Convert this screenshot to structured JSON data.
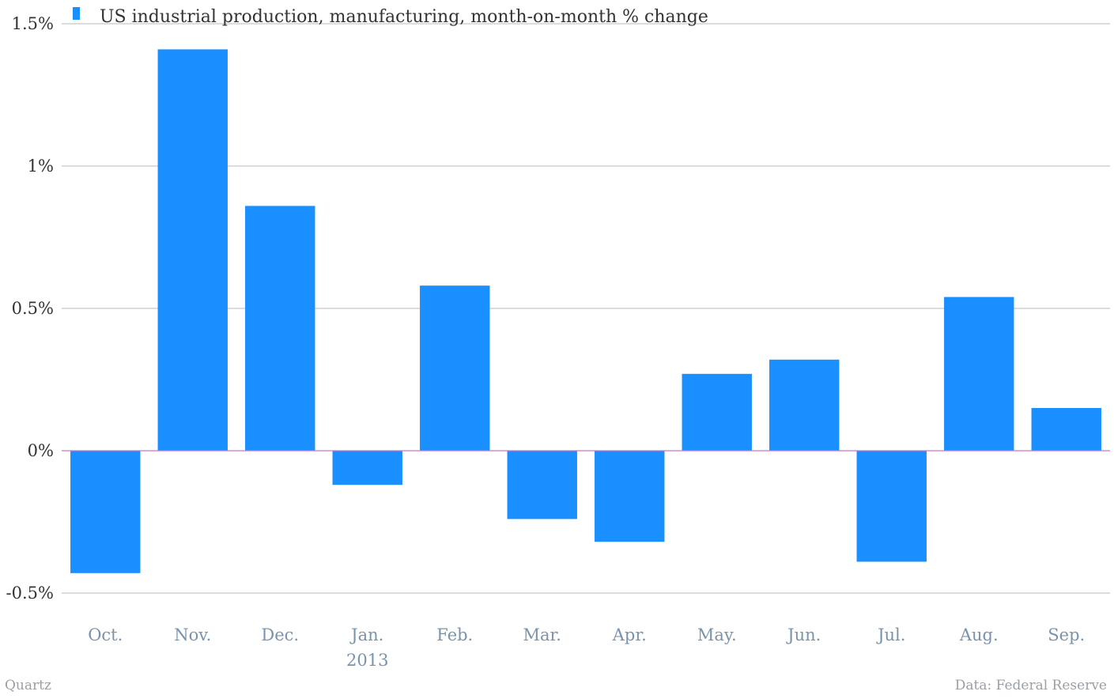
{
  "chart_data": {
    "type": "bar",
    "legend_position": "top-left",
    "grid": true,
    "series": [
      {
        "name": "US industrial production, manufacturing, month-on-month % change",
        "color": "#1a8fff",
        "values": [
          -0.43,
          1.41,
          0.86,
          -0.12,
          0.58,
          -0.24,
          -0.32,
          0.27,
          0.32,
          -0.39,
          0.54,
          0.15
        ]
      }
    ],
    "categories": [
      "Oct.",
      "Nov.",
      "Dec.",
      "Jan.",
      "Feb.",
      "Mar.",
      "Apr.",
      "May.",
      "Jun.",
      "Jul.",
      "Aug.",
      "Sep."
    ],
    "category_sublabels": [
      "",
      "",
      "",
      "2013",
      "",
      "",
      "",
      "",
      "",
      "",
      "",
      ""
    ],
    "ylim": [
      -0.5,
      1.5
    ],
    "yticks": [
      -0.5,
      0,
      0.5,
      1,
      1.5
    ],
    "ytick_labels": [
      "-0.5%",
      "0%",
      "0.5%",
      "1%",
      "1.5%"
    ],
    "zero_line_color": "#c678c6",
    "gridline_color": "#b8b8b8"
  },
  "footer": {
    "left": "Quartz",
    "right": "Data: Federal Reserve"
  }
}
